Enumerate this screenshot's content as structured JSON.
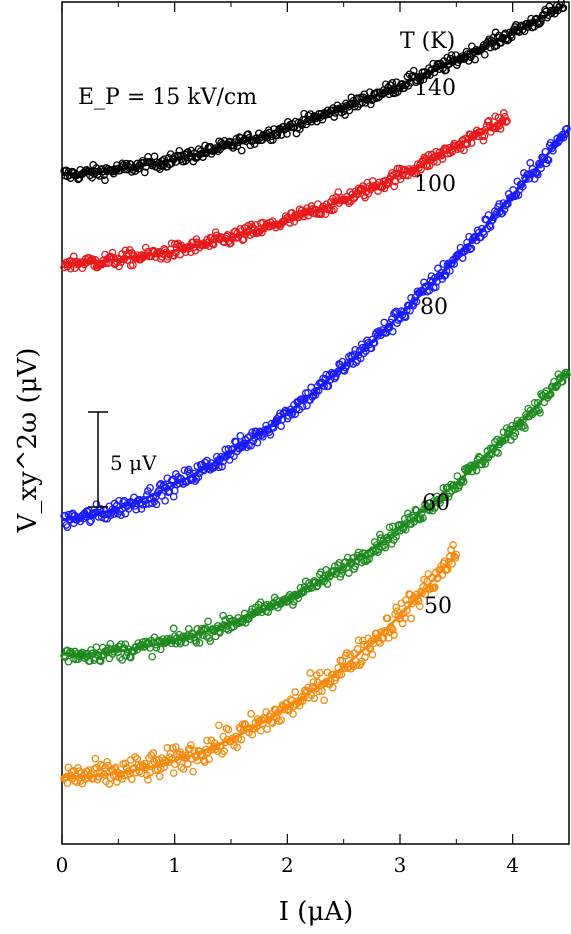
{
  "chart_data": {
    "type": "scatter",
    "xlabel": "I (μA)",
    "ylabel": "V_xy^2ω (μV)",
    "annotation": "E_P = 15 kV/cm",
    "legend_header": "T (K)",
    "scale_bar": {
      "label": "5 μV",
      "value": 5
    },
    "xlim": [
      0,
      4.5
    ],
    "ylim": [
      0,
      1
    ],
    "xticks": [
      0,
      1,
      2,
      3,
      4
    ],
    "y_tick_labels": "none",
    "series": [
      {
        "name": "140",
        "color": "#000000",
        "x_max": 4.45,
        "baseline": 0.795,
        "rise": 0.2,
        "exponent": 1.6,
        "noise": 0.008
      },
      {
        "name": "100",
        "color": "#e8191b",
        "x_max": 3.95,
        "baseline": 0.69,
        "rise": 0.172,
        "exponent": 1.8,
        "noise": 0.009
      },
      {
        "name": "80",
        "color": "#1a1aff",
        "x_max": 4.5,
        "baseline": 0.385,
        "rise": 0.465,
        "exponent": 1.6,
        "noise": 0.011
      },
      {
        "name": "60",
        "color": "#1f8a1f",
        "x_max": 4.5,
        "baseline": 0.225,
        "rise": 0.337,
        "exponent": 2.0,
        "noise": 0.01
      },
      {
        "name": "50",
        "color": "#f58a0f",
        "x_max": 3.5,
        "baseline": 0.08,
        "rise": 0.265,
        "exponent": 2.1,
        "noise": 0.016
      }
    ]
  }
}
